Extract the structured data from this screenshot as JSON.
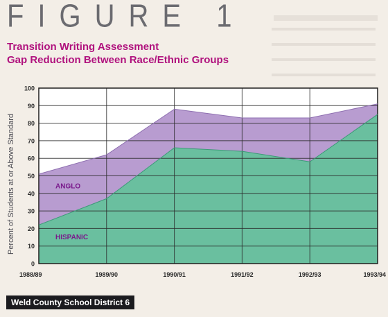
{
  "figure_label": "FIGURE 1",
  "footer": "Weld County School District 6",
  "chart_data": {
    "type": "area",
    "title": [
      "Transition Writing Assessment",
      "Gap Reduction Between Race/Ethnic Groups"
    ],
    "ylabel": "Percent of Students at or Above Standard",
    "xlabel": "",
    "categories": [
      "1988/89",
      "1989/90",
      "1990/91",
      "1991/92",
      "1992/93",
      "1993/94"
    ],
    "ylim": [
      0,
      100
    ],
    "yticks": [
      0,
      10,
      20,
      30,
      40,
      50,
      60,
      70,
      80,
      90,
      100
    ],
    "grid": true,
    "series": [
      {
        "name": "ANGLO",
        "values": [
          51,
          62,
          88,
          83,
          83,
          91
        ]
      },
      {
        "name": "HISPANIC",
        "values": [
          22,
          37,
          66,
          64,
          58,
          85
        ]
      }
    ],
    "colors": {
      "ANGLO": "#b497cd",
      "HISPANIC": "#62bc9a",
      "series_label": "#7a1a8c"
    }
  }
}
